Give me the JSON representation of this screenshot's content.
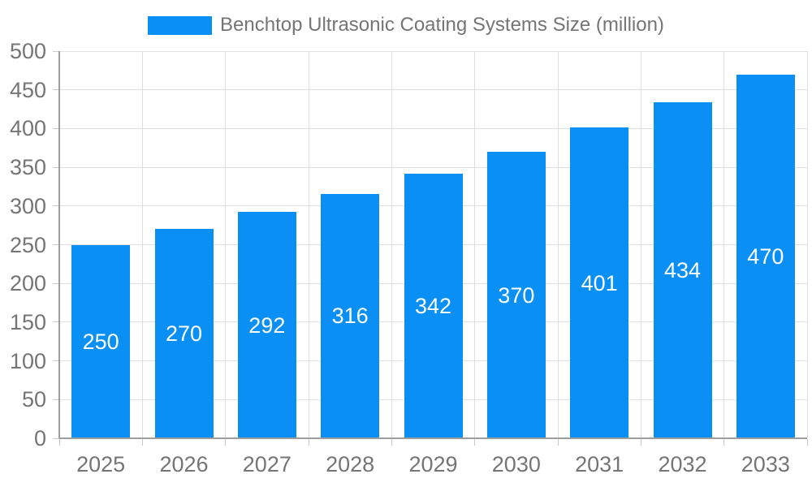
{
  "legend": {
    "label": "Benchtop Ultrasonic Coating Systems Size (million)"
  },
  "chart_data": {
    "type": "bar",
    "title": "Benchtop Ultrasonic Coating Systems Size (million)",
    "series_name": "Benchtop Ultrasonic Coating Systems Size (million)",
    "categories": [
      "2025",
      "2026",
      "2027",
      "2028",
      "2029",
      "2030",
      "2031",
      "2032",
      "2033"
    ],
    "values": [
      250,
      270,
      292,
      316,
      342,
      370,
      401,
      434,
      470
    ],
    "value_labels": [
      "250",
      "270",
      "292",
      "316",
      "342",
      "370",
      "401",
      "434",
      "470"
    ],
    "xlabel": "",
    "ylabel": "",
    "ylim": [
      0,
      500
    ],
    "ytick_step": 50,
    "yticks": [
      "0",
      "50",
      "100",
      "150",
      "200",
      "250",
      "300",
      "350",
      "400",
      "450",
      "500"
    ],
    "grid": true,
    "legend_position": "top-center",
    "colors": {
      "bar": "#0a90f4",
      "grid": "#e0e0e0",
      "axis": "#9e9e9e",
      "tick": "#c8c8c8",
      "label_text": "#757575",
      "value_text": "#ffffff",
      "background": "#ffffff"
    }
  }
}
